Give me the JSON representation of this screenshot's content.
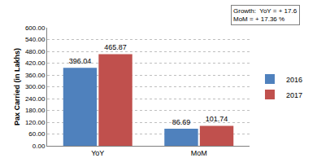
{
  "chart_data": {
    "type": "bar",
    "y_label": "Pax Carried (in Lakhs)",
    "categories": [
      "YoY",
      "MoM"
    ],
    "series": [
      {
        "name": "2016",
        "color": "#4f81bd",
        "values": [
          396.04,
          86.69
        ]
      },
      {
        "name": "2017",
        "color": "#c0504d",
        "values": [
          465.87,
          101.74
        ]
      }
    ],
    "ylim": [
      0,
      600
    ],
    "yticks": [
      {
        "value": 0,
        "label": "0.00"
      },
      {
        "value": 60,
        "label": "60.00"
      },
      {
        "value": 120,
        "label": "120.00"
      },
      {
        "value": 180,
        "label": "180.00"
      },
      {
        "value": 240,
        "label": "240.00"
      },
      {
        "value": 300,
        "label": "300.00"
      },
      {
        "value": 360,
        "label": "360.00"
      },
      {
        "value": 420,
        "label": "420.00"
      },
      {
        "value": 480,
        "label": "480.00"
      },
      {
        "value": 540,
        "label": "540.00"
      },
      {
        "value": 600,
        "label": "600.00"
      }
    ],
    "grid": true,
    "legend": "right",
    "data_labels": true,
    "annotations": [
      "Growth:  YoY = + 17.6",
      "MoM = + 17.36 %"
    ]
  }
}
